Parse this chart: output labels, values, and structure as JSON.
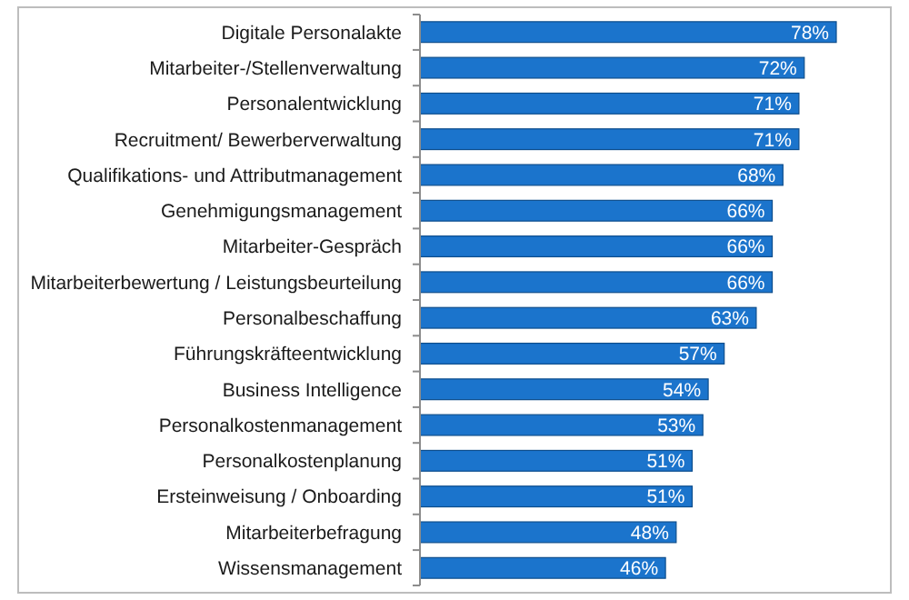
{
  "chart_data": {
    "type": "bar",
    "orientation": "horizontal",
    "categories": [
      "Digitale Personalakte",
      "Mitarbeiter-/Stellenverwaltung",
      "Personalentwicklung",
      "Recruitment/ Bewerberverwaltung",
      "Qualifikations- und Attributmanagement",
      "Genehmigungsmanagement",
      "Mitarbeiter-Gespräch",
      "Mitarbeiterbewertung / Leistungsbeurteilung",
      "Personalbeschaffung",
      "Führungskräfteentwicklung",
      "Business Intelligence",
      "Personalkostenmanagement",
      "Personalkostenplanung",
      "Ersteinweisung / Onboarding",
      "Mitarbeiterbefragung",
      "Wissensmanagement"
    ],
    "values": [
      78,
      72,
      71,
      71,
      68,
      66,
      66,
      66,
      63,
      57,
      54,
      53,
      51,
      51,
      48,
      46
    ],
    "value_labels": [
      "78%",
      "72%",
      "71%",
      "71%",
      "68%",
      "66%",
      "66%",
      "66%",
      "63%",
      "57%",
      "54%",
      "53%",
      "51%",
      "51%",
      "48%",
      "46%"
    ],
    "color": "#1b74cc",
    "tick_labels": "y"
  }
}
